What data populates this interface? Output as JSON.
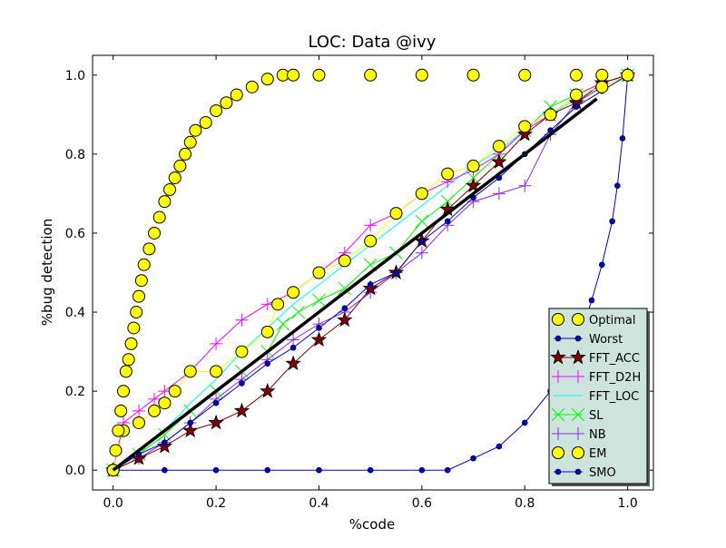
{
  "chart_data": {
    "type": "line",
    "title": "LOC: Data @ivy",
    "xlabel": "%code",
    "ylabel": "%bug detection",
    "xlim": [
      -0.04,
      1.05
    ],
    "ylim": [
      -0.05,
      1.05
    ],
    "xticks": [
      0.0,
      0.2,
      0.4,
      0.6,
      0.8,
      1.0
    ],
    "xtick_labels": [
      "0.0",
      "0.2",
      "0.4",
      "0.6",
      "0.8",
      "1.0"
    ],
    "yticks": [
      0.0,
      0.2,
      0.4,
      0.6,
      0.8,
      1.0
    ],
    "ytick_labels": [
      "0.0",
      "0.2",
      "0.4",
      "0.6",
      "0.8",
      "1.0"
    ],
    "grid": false,
    "legend_position": "lower-right",
    "legend_bg": "#cde4dc",
    "series": [
      {
        "name": "Optimal",
        "color": "#ffff00",
        "edge": "#000000",
        "marker": "big-circle",
        "line": false,
        "x": [
          0.0,
          0.005,
          0.01,
          0.015,
          0.02,
          0.025,
          0.03,
          0.035,
          0.04,
          0.045,
          0.05,
          0.055,
          0.06,
          0.07,
          0.08,
          0.09,
          0.1,
          0.11,
          0.12,
          0.13,
          0.14,
          0.15,
          0.16,
          0.18,
          0.2,
          0.22,
          0.24,
          0.27,
          0.3,
          0.33,
          0.35,
          0.4,
          0.5,
          0.6,
          0.7,
          0.8,
          0.9,
          0.95,
          1.0
        ],
        "y": [
          0.0,
          0.05,
          0.1,
          0.15,
          0.2,
          0.25,
          0.28,
          0.32,
          0.36,
          0.4,
          0.44,
          0.48,
          0.52,
          0.56,
          0.6,
          0.64,
          0.68,
          0.71,
          0.74,
          0.77,
          0.8,
          0.83,
          0.86,
          0.88,
          0.91,
          0.93,
          0.95,
          0.97,
          0.99,
          1.0,
          1.0,
          1.0,
          1.0,
          1.0,
          1.0,
          1.0,
          1.0,
          1.0,
          1.0
        ]
      },
      {
        "name": "Worst",
        "color": "#0000cc",
        "edge": "#000000",
        "marker": "small-dot",
        "line": true,
        "x": [
          0.0,
          0.1,
          0.2,
          0.3,
          0.4,
          0.5,
          0.6,
          0.65,
          0.7,
          0.75,
          0.8,
          0.85,
          0.88,
          0.91,
          0.93,
          0.95,
          0.97,
          0.98,
          0.99,
          1.0
        ],
        "y": [
          0.0,
          0.0,
          0.0,
          0.0,
          0.0,
          0.0,
          0.0,
          0.0,
          0.03,
          0.06,
          0.12,
          0.2,
          0.27,
          0.35,
          0.43,
          0.52,
          0.63,
          0.72,
          0.84,
          1.0
        ]
      },
      {
        "name": "FFT_ACC",
        "color": "#7f0000",
        "edge": "#000000",
        "marker": "star",
        "line": true,
        "x": [
          0.0,
          0.05,
          0.1,
          0.15,
          0.2,
          0.25,
          0.3,
          0.35,
          0.4,
          0.45,
          0.5,
          0.55,
          0.6,
          0.65,
          0.7,
          0.75,
          0.8,
          0.85,
          0.9,
          0.95,
          1.0
        ],
        "y": [
          0.0,
          0.03,
          0.06,
          0.1,
          0.12,
          0.15,
          0.2,
          0.27,
          0.33,
          0.38,
          0.46,
          0.5,
          0.58,
          0.66,
          0.72,
          0.78,
          0.85,
          0.9,
          0.93,
          0.98,
          1.0
        ]
      },
      {
        "name": "FFT_D2H",
        "color": "#ff00ff",
        "edge": "#ff00ff",
        "marker": "plus",
        "line": true,
        "x": [
          0.0,
          0.02,
          0.05,
          0.08,
          0.1,
          0.15,
          0.2,
          0.25,
          0.3,
          0.35,
          0.4,
          0.45,
          0.5,
          0.55,
          0.6,
          0.65,
          0.7,
          0.75,
          0.8,
          0.85,
          0.9,
          0.95,
          1.0
        ],
        "y": [
          0.0,
          0.12,
          0.15,
          0.18,
          0.2,
          0.25,
          0.32,
          0.38,
          0.42,
          0.45,
          0.5,
          0.55,
          0.62,
          0.65,
          0.7,
          0.73,
          0.76,
          0.8,
          0.86,
          0.9,
          0.95,
          0.98,
          1.0
        ]
      },
      {
        "name": "FFT_LOC",
        "color": "#00ffff",
        "edge": "#00ffff",
        "marker": "none",
        "line": true,
        "x": [
          0.0,
          0.05,
          0.1,
          0.15,
          0.2,
          0.25,
          0.3,
          0.35,
          0.4,
          0.45,
          0.5,
          0.55,
          0.6,
          0.65,
          0.7,
          0.75,
          0.8,
          0.85,
          0.9,
          0.95,
          1.0
        ],
        "y": [
          0.0,
          0.05,
          0.1,
          0.17,
          0.23,
          0.3,
          0.36,
          0.42,
          0.47,
          0.52,
          0.57,
          0.62,
          0.67,
          0.72,
          0.77,
          0.81,
          0.86,
          0.9,
          0.94,
          0.97,
          1.0
        ]
      },
      {
        "name": "SL",
        "color": "#00ff00",
        "edge": "#00ff00",
        "marker": "x",
        "line": true,
        "x": [
          0.0,
          0.05,
          0.1,
          0.15,
          0.2,
          0.25,
          0.3,
          0.33,
          0.36,
          0.4,
          0.45,
          0.5,
          0.55,
          0.6,
          0.65,
          0.7,
          0.75,
          0.8,
          0.85,
          0.9,
          0.95,
          1.0
        ],
        "y": [
          0.0,
          0.04,
          0.09,
          0.15,
          0.2,
          0.25,
          0.3,
          0.37,
          0.4,
          0.43,
          0.46,
          0.52,
          0.55,
          0.63,
          0.68,
          0.74,
          0.8,
          0.86,
          0.92,
          0.95,
          0.98,
          1.0
        ]
      },
      {
        "name": "NB",
        "color": "#8a2be2",
        "edge": "#8a2be2",
        "marker": "plus",
        "line": true,
        "x": [
          0.0,
          0.05,
          0.1,
          0.15,
          0.2,
          0.25,
          0.3,
          0.35,
          0.4,
          0.45,
          0.5,
          0.55,
          0.6,
          0.65,
          0.7,
          0.75,
          0.8,
          0.85,
          0.9,
          0.95,
          1.0
        ],
        "y": [
          0.0,
          0.03,
          0.07,
          0.12,
          0.18,
          0.23,
          0.28,
          0.33,
          0.37,
          0.4,
          0.45,
          0.5,
          0.55,
          0.62,
          0.68,
          0.7,
          0.72,
          0.85,
          0.93,
          0.97,
          1.0
        ]
      },
      {
        "name": "EM",
        "color": "#ffff00",
        "edge": "#000000",
        "marker": "big-circle",
        "line": true,
        "x": [
          0.0,
          0.02,
          0.05,
          0.08,
          0.1,
          0.12,
          0.15,
          0.2,
          0.25,
          0.3,
          0.32,
          0.35,
          0.4,
          0.45,
          0.5,
          0.55,
          0.6,
          0.65,
          0.7,
          0.75,
          0.8,
          0.85,
          0.9,
          0.95,
          1.0
        ],
        "y": [
          0.0,
          0.1,
          0.12,
          0.15,
          0.17,
          0.2,
          0.25,
          0.25,
          0.3,
          0.35,
          0.42,
          0.45,
          0.5,
          0.53,
          0.58,
          0.65,
          0.7,
          0.75,
          0.77,
          0.82,
          0.87,
          0.9,
          0.95,
          0.97,
          1.0
        ]
      },
      {
        "name": "SMO",
        "color": "#0000cc",
        "edge": "#000000",
        "marker": "small-dot",
        "line": true,
        "x": [
          0.0,
          0.05,
          0.1,
          0.15,
          0.2,
          0.25,
          0.3,
          0.35,
          0.4,
          0.45,
          0.5,
          0.55,
          0.6,
          0.65,
          0.7,
          0.75,
          0.8,
          0.85,
          0.9,
          0.95,
          1.0
        ],
        "y": [
          0.0,
          0.04,
          0.07,
          0.12,
          0.17,
          0.22,
          0.27,
          0.31,
          0.36,
          0.41,
          0.47,
          0.5,
          0.58,
          0.63,
          0.69,
          0.74,
          0.8,
          0.86,
          0.92,
          0.96,
          1.0
        ]
      }
    ],
    "diagonal": {
      "x": [
        0.0,
        0.94
      ],
      "y": [
        0.0,
        0.94
      ],
      "color": "#000000"
    }
  }
}
